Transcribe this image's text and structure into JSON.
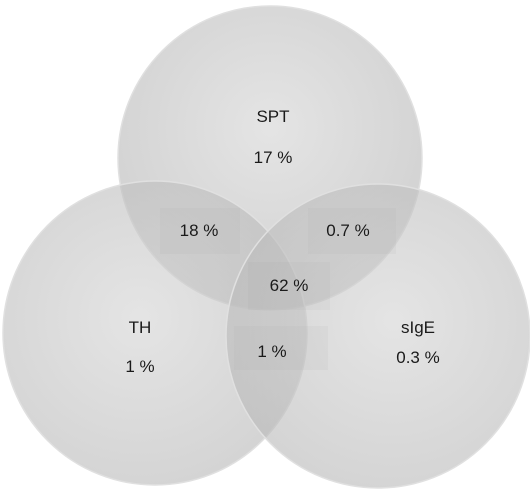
{
  "diagram": {
    "type": "venn-3",
    "colors": {
      "circle_fill": "#bdbdbd",
      "circle_stroke": "#d9d9d9",
      "text": "#1a1a1a"
    },
    "sets": [
      {
        "id": "spt",
        "label": "SPT",
        "only_percent": "17 %"
      },
      {
        "id": "th",
        "label": "TH",
        "only_percent": "1 %"
      },
      {
        "id": "sige",
        "label": "sIgE",
        "only_percent": "0.3 %"
      }
    ],
    "overlaps": {
      "spt_th": "18 %",
      "spt_sige": "0.7 %",
      "th_sige": "1 %",
      "all": "62 %"
    }
  }
}
